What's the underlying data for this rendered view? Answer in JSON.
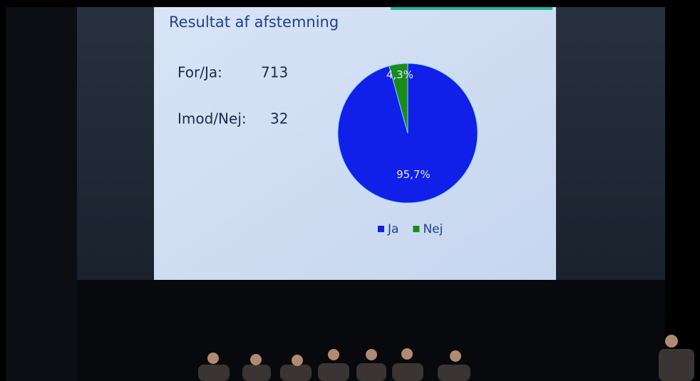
{
  "slide": {
    "title": "Resultat af afstemning",
    "votes": [
      {
        "label": "For/Ja:",
        "count": 713
      },
      {
        "label": "Imod/Nej:",
        "count": 32
      }
    ]
  },
  "chart_data": {
    "type": "pie",
    "categories": [
      "Ja",
      "Nej"
    ],
    "values": [
      95.7,
      4.3
    ],
    "value_labels": [
      "95,7%",
      "4,3%"
    ],
    "colors": [
      "#1020e8",
      "#1a8a1a"
    ],
    "legend": "bottom"
  }
}
